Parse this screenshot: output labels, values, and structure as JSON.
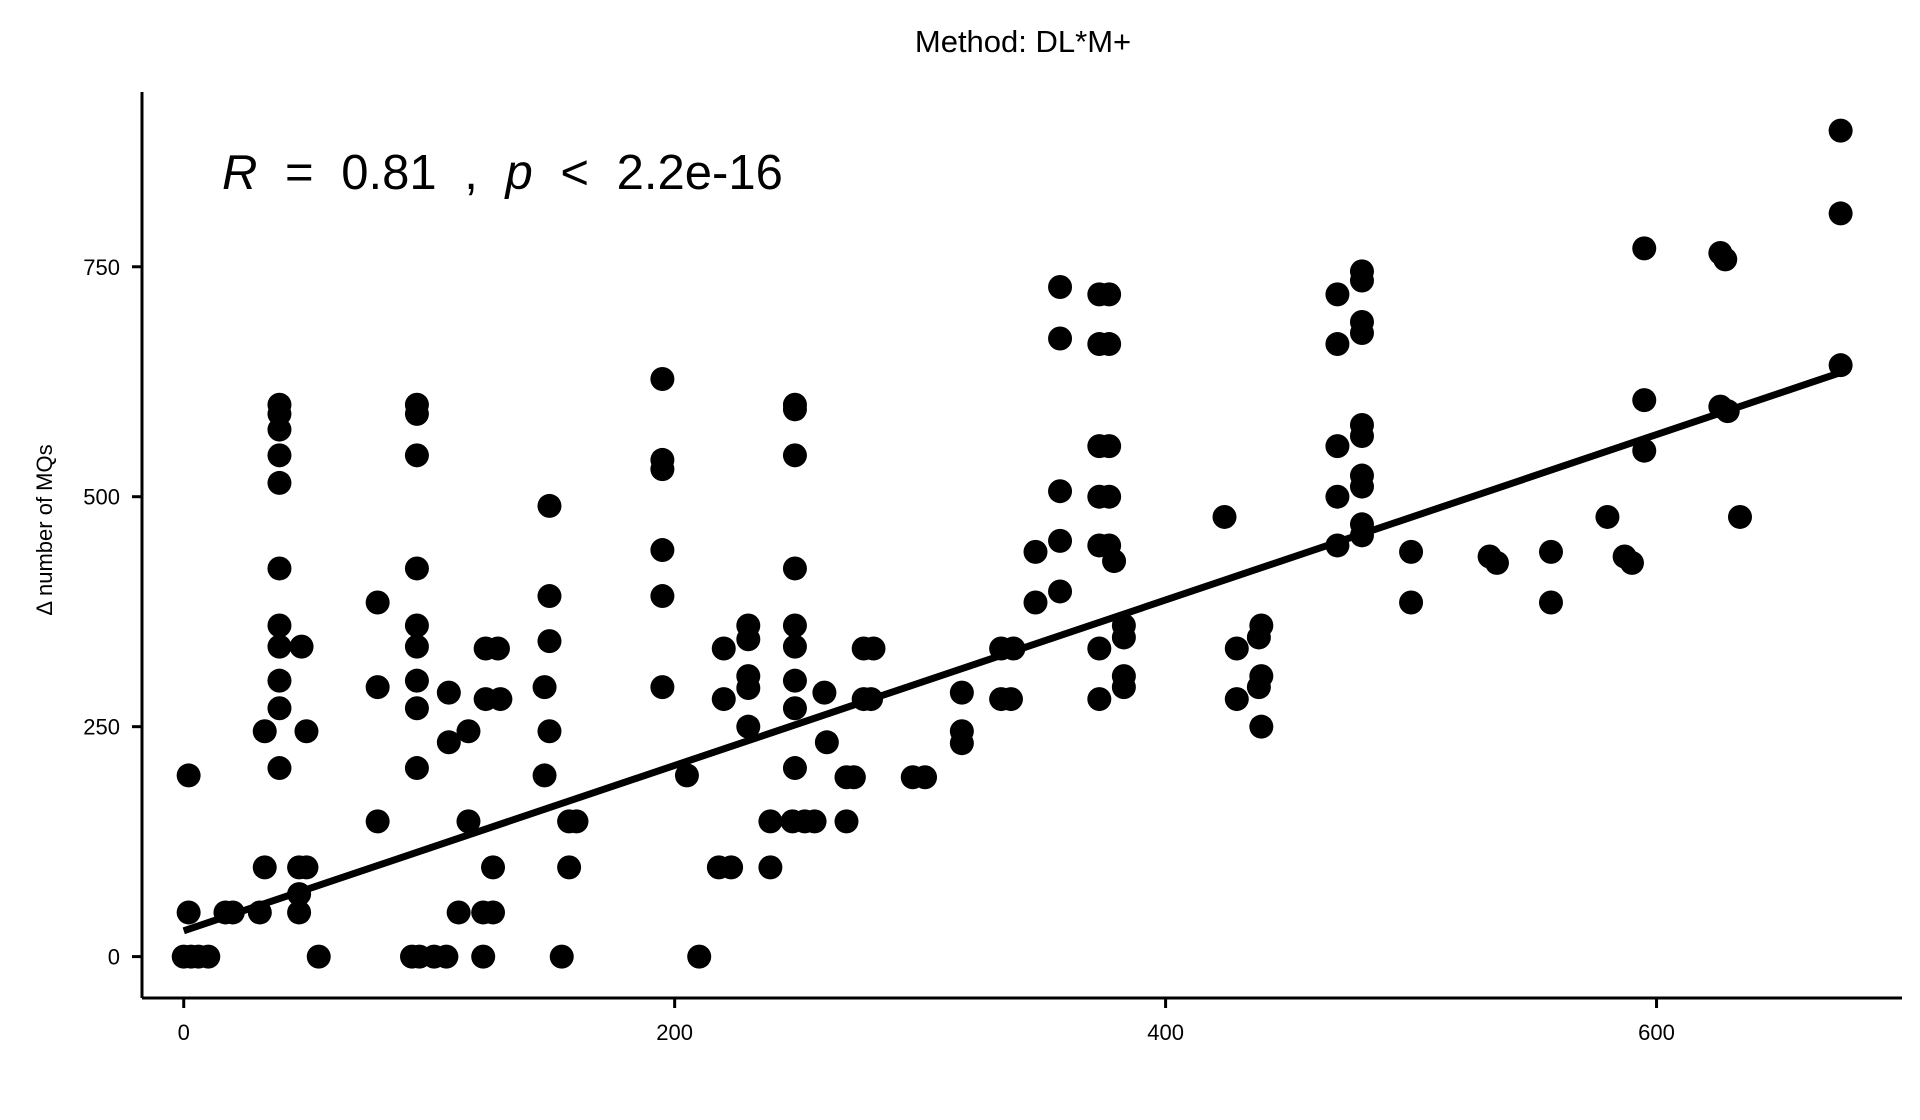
{
  "chart_data": {
    "type": "scatter",
    "title": "Method: DL*M+",
    "xlabel": "",
    "ylabel": "Δ number of MQs",
    "xlim": [
      -17,
      700
    ],
    "ylim": [
      -45,
      940
    ],
    "x_ticks": [
      0,
      200,
      400,
      600
    ],
    "y_ticks": [
      0,
      250,
      500,
      750
    ],
    "grid": false,
    "legend": "none",
    "annotation": {
      "r_symbol": "R",
      "equals": "=",
      "r_value": "0.81",
      "separator": ",",
      "p_symbol": "p",
      "less_than": "<",
      "p_value": "2.2e-16"
    },
    "point_color": "#000000",
    "line_color": "#000000",
    "regression_line": {
      "x": [
        0,
        675
      ],
      "y": [
        28,
        635
      ]
    },
    "points": [
      [
        0,
        0
      ],
      [
        3,
        0
      ],
      [
        6,
        0
      ],
      [
        10,
        0
      ],
      [
        2,
        197
      ],
      [
        2,
        48
      ],
      [
        17,
        48
      ],
      [
        20,
        48
      ],
      [
        31,
        48
      ],
      [
        33,
        245
      ],
      [
        33,
        97
      ],
      [
        39,
        600
      ],
      [
        39,
        590
      ],
      [
        39,
        573
      ],
      [
        39,
        545
      ],
      [
        39,
        515
      ],
      [
        39,
        422
      ],
      [
        39,
        360
      ],
      [
        39,
        337
      ],
      [
        39,
        300
      ],
      [
        39,
        270
      ],
      [
        39,
        205
      ],
      [
        47,
        97
      ],
      [
        47,
        68
      ],
      [
        47,
        48
      ],
      [
        48,
        337
      ],
      [
        50,
        245
      ],
      [
        50,
        97
      ],
      [
        55,
        0
      ],
      [
        79,
        385
      ],
      [
        79,
        293
      ],
      [
        79,
        147
      ],
      [
        93,
        0
      ],
      [
        96,
        0
      ],
      [
        102,
        0
      ],
      [
        107,
        0
      ],
      [
        95,
        600
      ],
      [
        95,
        590
      ],
      [
        95,
        545
      ],
      [
        95,
        422
      ],
      [
        95,
        360
      ],
      [
        95,
        337
      ],
      [
        95,
        300
      ],
      [
        95,
        270
      ],
      [
        95,
        205
      ],
      [
        108,
        287
      ],
      [
        108,
        233
      ],
      [
        112,
        48
      ],
      [
        116,
        245
      ],
      [
        116,
        147
      ],
      [
        122,
        0
      ],
      [
        122,
        48
      ],
      [
        123,
        280
      ],
      [
        123,
        335
      ],
      [
        126,
        48
      ],
      [
        126,
        97
      ],
      [
        128,
        335
      ],
      [
        129,
        280
      ],
      [
        147,
        293
      ],
      [
        147,
        197
      ],
      [
        149,
        490
      ],
      [
        149,
        392
      ],
      [
        149,
        343
      ],
      [
        149,
        245
      ],
      [
        154,
        0
      ],
      [
        157,
        147
      ],
      [
        157,
        97
      ],
      [
        160,
        147
      ],
      [
        195,
        628
      ],
      [
        195,
        540
      ],
      [
        195,
        530
      ],
      [
        195,
        442
      ],
      [
        195,
        392
      ],
      [
        195,
        293
      ],
      [
        205,
        197
      ],
      [
        210,
        0
      ],
      [
        218,
        97
      ],
      [
        220,
        335
      ],
      [
        220,
        280
      ],
      [
        223,
        97
      ],
      [
        230,
        360
      ],
      [
        230,
        345
      ],
      [
        230,
        305
      ],
      [
        230,
        292
      ],
      [
        230,
        250
      ],
      [
        239,
        147
      ],
      [
        239,
        97
      ],
      [
        248,
        147
      ],
      [
        249,
        600
      ],
      [
        249,
        595
      ],
      [
        249,
        545
      ],
      [
        249,
        422
      ],
      [
        249,
        360
      ],
      [
        249,
        337
      ],
      [
        249,
        300
      ],
      [
        249,
        270
      ],
      [
        249,
        205
      ],
      [
        253,
        147
      ],
      [
        257,
        147
      ],
      [
        261,
        287
      ],
      [
        262,
        233
      ],
      [
        270,
        147
      ],
      [
        270,
        195
      ],
      [
        273,
        195
      ],
      [
        277,
        335
      ],
      [
        277,
        280
      ],
      [
        280,
        280
      ],
      [
        281,
        335
      ],
      [
        297,
        195
      ],
      [
        302,
        195
      ],
      [
        317,
        287
      ],
      [
        317,
        245
      ],
      [
        317,
        232
      ],
      [
        333,
        335
      ],
      [
        333,
        280
      ],
      [
        337,
        280
      ],
      [
        338,
        335
      ],
      [
        347,
        440
      ],
      [
        347,
        385
      ],
      [
        357,
        728
      ],
      [
        357,
        672
      ],
      [
        357,
        506
      ],
      [
        357,
        452
      ],
      [
        357,
        397
      ],
      [
        373,
        720
      ],
      [
        373,
        666
      ],
      [
        373,
        555
      ],
      [
        373,
        500
      ],
      [
        373,
        447
      ],
      [
        373,
        335
      ],
      [
        373,
        280
      ],
      [
        377,
        720
      ],
      [
        377,
        666
      ],
      [
        377,
        555
      ],
      [
        377,
        500
      ],
      [
        377,
        447
      ],
      [
        379,
        430
      ],
      [
        383,
        360
      ],
      [
        383,
        347
      ],
      [
        383,
        305
      ],
      [
        383,
        293
      ],
      [
        424,
        478
      ],
      [
        429,
        335
      ],
      [
        429,
        280
      ],
      [
        438,
        347
      ],
      [
        438,
        293
      ],
      [
        439,
        360
      ],
      [
        439,
        305
      ],
      [
        439,
        250
      ],
      [
        470,
        720
      ],
      [
        470,
        666
      ],
      [
        470,
        555
      ],
      [
        470,
        500
      ],
      [
        470,
        447
      ],
      [
        480,
        745
      ],
      [
        480,
        735
      ],
      [
        480,
        690
      ],
      [
        480,
        678
      ],
      [
        480,
        578
      ],
      [
        480,
        566
      ],
      [
        480,
        523
      ],
      [
        480,
        511
      ],
      [
        480,
        470
      ],
      [
        480,
        458
      ],
      [
        500,
        440
      ],
      [
        500,
        385
      ],
      [
        532,
        435
      ],
      [
        535,
        428
      ],
      [
        557,
        440
      ],
      [
        557,
        385
      ],
      [
        580,
        478
      ],
      [
        587,
        435
      ],
      [
        590,
        428
      ],
      [
        595,
        770
      ],
      [
        595,
        605
      ],
      [
        595,
        550
      ],
      [
        626,
        765
      ],
      [
        628,
        758
      ],
      [
        626,
        598
      ],
      [
        629,
        593
      ],
      [
        634,
        478
      ],
      [
        675,
        898
      ],
      [
        675,
        808
      ],
      [
        675,
        643
      ]
    ]
  }
}
